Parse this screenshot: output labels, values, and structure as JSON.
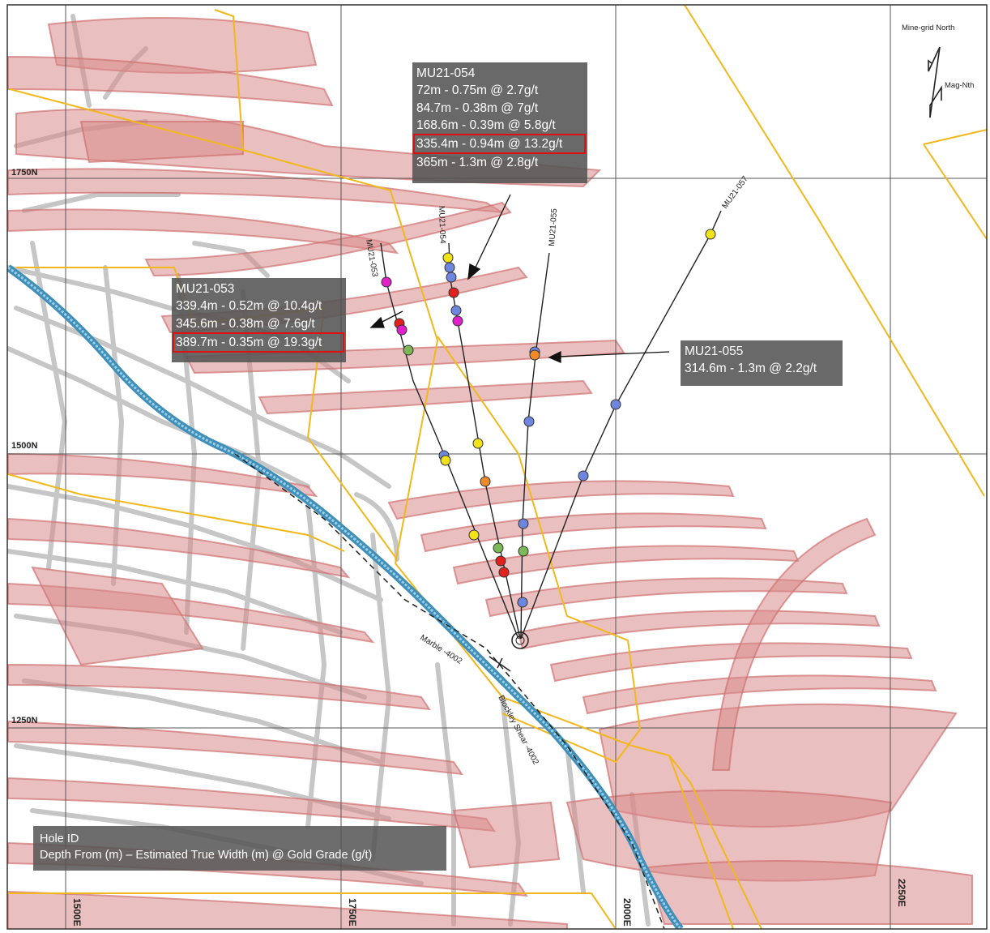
{
  "grid": {
    "northing_labels": [
      "1750N",
      "1500N",
      "1250N"
    ],
    "easting_labels": [
      "1500E",
      "1750E",
      "2000E",
      "2250E"
    ]
  },
  "north_arrow": {
    "grid_label": "Mine-grid North",
    "mag_label": "Mag-Nth"
  },
  "structures": {
    "marble_label": "Marble -4002",
    "shear_label": "Blockley Shear -4002"
  },
  "holes": [
    {
      "id": "MU21-053"
    },
    {
      "id": "MU21-054"
    },
    {
      "id": "MU21-055"
    },
    {
      "id": "MU21-057"
    }
  ],
  "callouts": {
    "mu21_054": {
      "title": "MU21-054",
      "lines": [
        "72m - 0.75m @ 2.7g/t",
        "84.7m - 0.38m @ 7g/t",
        "168.6m - 0.39m @ 5.8g/t",
        "335.4m - 0.94m @ 13.2g/t",
        "365m - 1.3m @ 2.8g/t"
      ],
      "highlight_index": 3
    },
    "mu21_053": {
      "title": "MU21-053",
      "lines": [
        "339.4m - 0.52m @ 10.4g/t",
        "345.6m - 0.38m @ 7.6g/t",
        "389.7m - 0.35m @ 19.3g/t"
      ],
      "highlight_index": 2
    },
    "mu21_055": {
      "title": "MU21-055",
      "lines": [
        "314.6m - 1.3m @ 2.2g/t"
      ]
    }
  },
  "legend": {
    "line1": "Hole ID",
    "line2": "Depth From (m) – Estimated True Width (m) @ Gold Grade (g/t)"
  },
  "intercept_colors": {
    "yellow": "#f2e21a",
    "blue": "#6f86de",
    "red": "#e0211e",
    "magenta": "#e020c8",
    "green": "#7cb85a",
    "orange": "#ee8a2a"
  },
  "colors": {
    "lode": "#d98a8a",
    "drives": "#bdbdbd",
    "boundary": "#f0b81c",
    "marble": "#3f8fb8",
    "grid": "#555555"
  }
}
